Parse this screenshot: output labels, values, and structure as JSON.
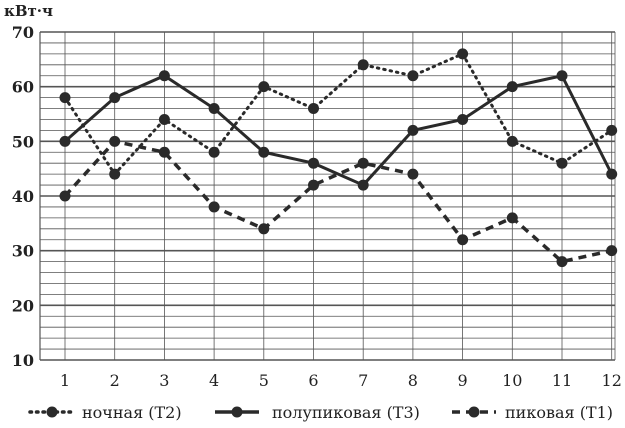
{
  "chart_data": {
    "type": "line",
    "ylabel": "кВт·ч",
    "xlabel": "",
    "ylim": [
      10,
      70
    ],
    "yticks": [
      "10",
      "20",
      "30",
      "40",
      "50",
      "60",
      "70"
    ],
    "categories": [
      "1",
      "2",
      "3",
      "4",
      "5",
      "6",
      "7",
      "8",
      "9",
      "10",
      "11",
      "12"
    ],
    "grid": true,
    "legend_position": "bottom",
    "series": [
      {
        "name": "ночная (Т2)",
        "style": "dotted",
        "values": [
          58,
          44,
          54,
          48,
          60,
          56,
          64,
          62,
          66,
          50,
          46,
          52
        ]
      },
      {
        "name": "полупиковая (Т3)",
        "style": "solid",
        "values": [
          50,
          58,
          62,
          56,
          48,
          46,
          42,
          52,
          54,
          60,
          62,
          44
        ]
      },
      {
        "name": "пиковая (Т1)",
        "style": "dashed",
        "values": [
          40,
          50,
          48,
          38,
          34,
          42,
          46,
          44,
          32,
          36,
          28,
          30
        ]
      }
    ]
  },
  "colors": {
    "line": "#2a2a2a",
    "grid": "#555555"
  }
}
